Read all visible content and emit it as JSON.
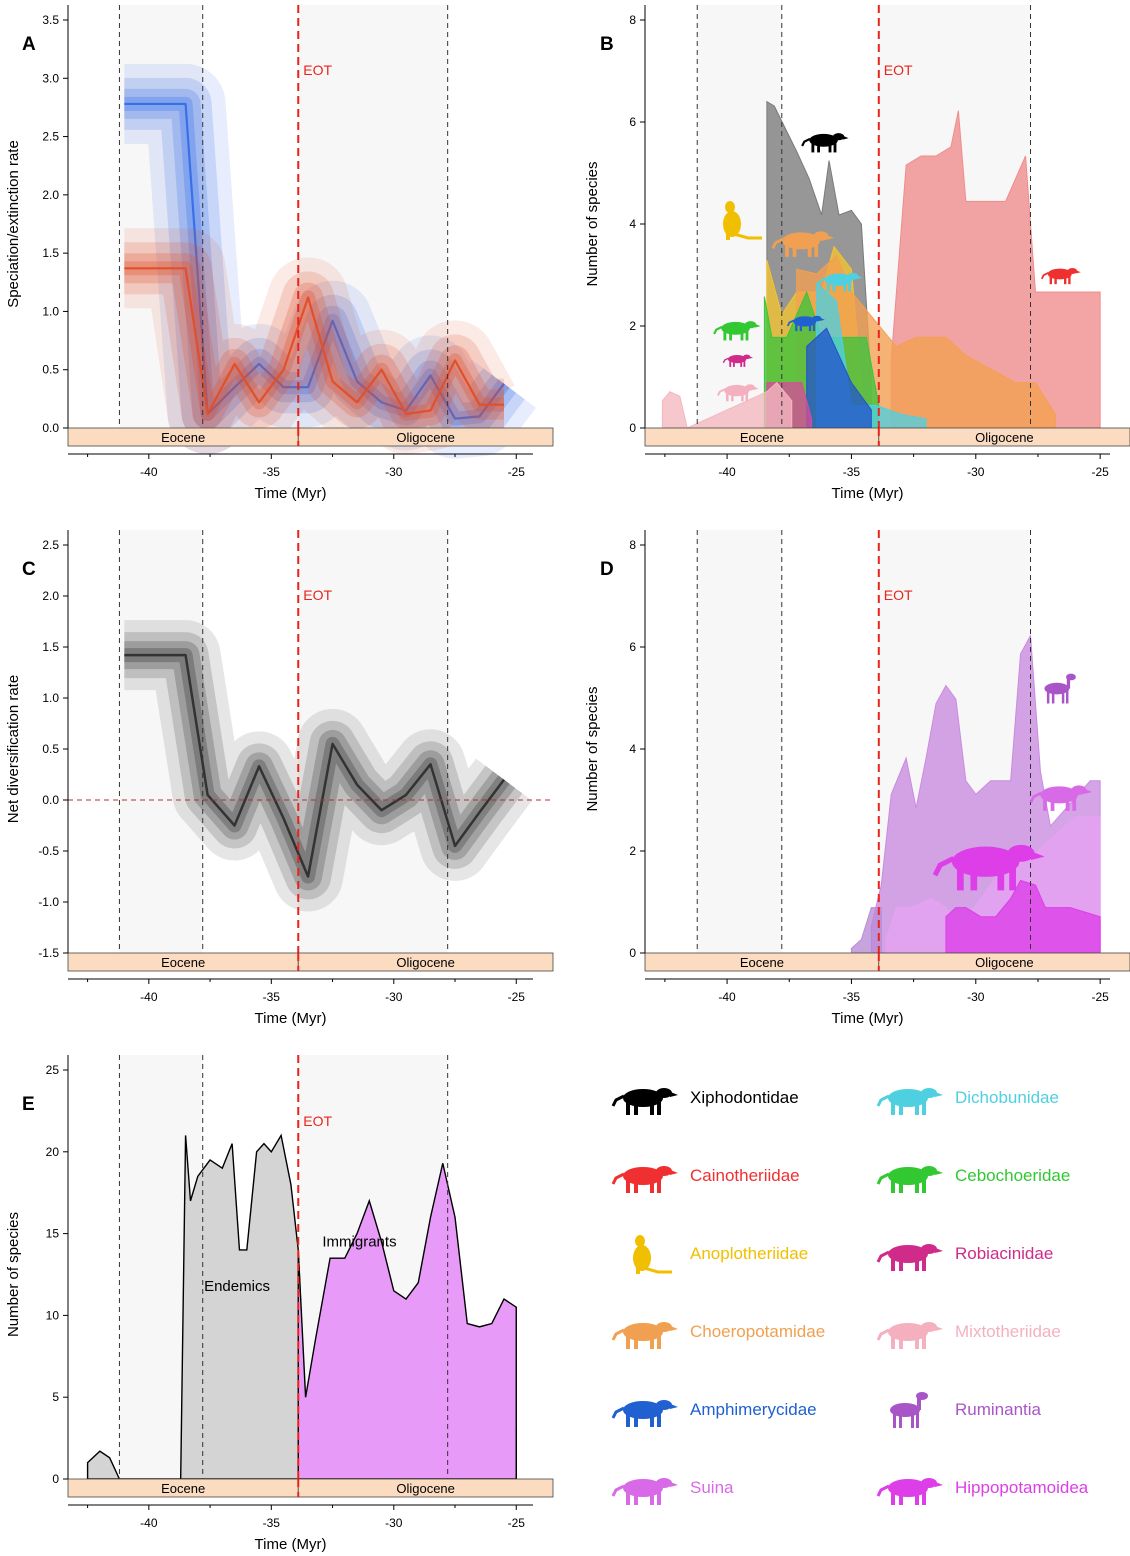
{
  "figure": {
    "eot_label": "EOT",
    "epochs": [
      {
        "name": "Eocene",
        "start": -43.3,
        "end": -33.9
      },
      {
        "name": "Oligocene",
        "start": -33.9,
        "end": -23.5
      }
    ],
    "eot_time": -33.9,
    "dashed_lines": [
      -41.2,
      -37.8,
      -27.8
    ],
    "shaded_intervals": [
      [
        -41.2,
        -37.8
      ],
      [
        -33.9,
        -27.8
      ]
    ],
    "colors": {
      "speciation": "#3a6fe8",
      "extinction": "#e0502a",
      "eot": "#e8241c",
      "epoch_band": "#fbdcc0",
      "shade": "#f7f7f7",
      "endemics": "#d4d4d4",
      "immigrants": "#e79af7"
    }
  },
  "chart_data": [
    {
      "panel": "A",
      "type": "line",
      "xlabel": "Time (Myr)",
      "ylabel": "Speciation/extinction rate",
      "xlim": [
        -43.3,
        -23.5
      ],
      "ylim": [
        0,
        3.5
      ],
      "xticks": [
        "-40",
        "-35",
        "-30",
        "-25"
      ],
      "yticks": [
        "0.0",
        "0.5",
        "1.0",
        "1.5",
        "2.0",
        "2.5",
        "3.0",
        "3.5"
      ],
      "series": [
        {
          "color": "#3a6fe8",
          "x": [
            -41,
            -38.5,
            -37.6,
            -36.5,
            -35.5,
            -34.5,
            -33.5,
            -32.5,
            -31.5,
            -30.5,
            -29.5,
            -28.5,
            -27.5,
            -26.5,
            -25.5
          ],
          "y": [
            2.78,
            2.78,
            0.12,
            0.35,
            0.55,
            0.35,
            0.35,
            0.92,
            0.4,
            0.22,
            0.15,
            0.45,
            0.08,
            0.1,
            0.38
          ]
        },
        {
          "color": "#e0502a",
          "x": [
            -41,
            -38.5,
            -37.6,
            -36.5,
            -35.5,
            -34.5,
            -33.5,
            -32.5,
            -31.5,
            -30.5,
            -29.5,
            -28.5,
            -27.5,
            -26.5,
            -25.5
          ],
          "y": [
            1.37,
            1.37,
            0.12,
            0.55,
            0.22,
            0.5,
            1.12,
            0.4,
            0.22,
            0.5,
            0.12,
            0.15,
            0.58,
            0.2,
            0.2
          ]
        }
      ]
    },
    {
      "panel": "B",
      "type": "area",
      "xlabel": "Time (Myr)",
      "ylabel": "Number of species",
      "xlim": [
        -43.3,
        -23.8
      ],
      "ylim": [
        0,
        9
      ],
      "xticks": [
        "-40",
        "-35",
        "-30",
        "-25"
      ],
      "yticks": [
        "0",
        "2",
        "4",
        "6",
        "8"
      ],
      "series": [
        {
          "color": "#f08c8c",
          "x": [
            -33.4,
            -32.8,
            -32.2,
            -31.6,
            -31.0,
            -30.7,
            -30.4,
            -29.8,
            -28.8,
            -28.0,
            -27.6,
            -27.0,
            -25.0
          ],
          "y": [
            1.5,
            5.8,
            6.0,
            6.0,
            6.2,
            7.0,
            5.0,
            5.0,
            5.0,
            6.0,
            3.0,
            3.0,
            3.0
          ]
        },
        {
          "color": "#7a7a7a",
          "x": [
            -38.4,
            -38.1,
            -37.2,
            -36.7,
            -36.2,
            -35.9,
            -35.5,
            -35.0,
            -34.6,
            -34.2
          ],
          "y": [
            7.2,
            7.1,
            6.1,
            5.5,
            4.7,
            5.9,
            4.7,
            4.8,
            4.5,
            1.0
          ]
        },
        {
          "color": "#f4c430",
          "x": [
            -38.4,
            -37.8,
            -37.2,
            -36.2,
            -35.7,
            -35.0,
            -34.6
          ],
          "y": [
            3.7,
            2.5,
            3.0,
            3.0,
            4.0,
            3.5,
            1.0
          ]
        },
        {
          "color": "#f4a050",
          "x": [
            -37.2,
            -36.4,
            -35.6,
            -35.0,
            -33.2,
            -32.4,
            -31.2,
            -30.4,
            -28.4,
            -27.6,
            -26.8
          ],
          "y": [
            3.5,
            3.4,
            3.8,
            3.0,
            1.8,
            2.0,
            2.0,
            1.6,
            1.0,
            1.0,
            0.3
          ]
        },
        {
          "color": "#3cc43c",
          "x": [
            -38.5,
            -38.2,
            -37.6,
            -36.8,
            -36.2,
            -35.2,
            -34.4,
            -33.9
          ],
          "y": [
            2.9,
            2.0,
            2.0,
            3.0,
            2.0,
            2.0,
            2.0,
            0.5
          ]
        },
        {
          "color": "#4fd0e0",
          "x": [
            -36.4,
            -35.6,
            -35.0,
            -34.0,
            -33.0,
            -32.0
          ],
          "y": [
            3.2,
            2.8,
            0.5,
            0.5,
            0.3,
            0.2
          ]
        },
        {
          "color": "#2255cc",
          "x": [
            -36.8,
            -36.0,
            -35.0,
            -34.2
          ],
          "y": [
            1.8,
            2.2,
            1.0,
            0.4
          ]
        },
        {
          "color": "#d64b9b",
          "x": [
            -38.4,
            -37.8,
            -37.0,
            -36.6
          ],
          "y": [
            1.0,
            1.0,
            1.0,
            0.2
          ]
        },
        {
          "color": "#f5b7c0",
          "x": [
            -42.6,
            -42.3,
            -41.9,
            -41.6,
            -38.4,
            -38.0,
            -37.4
          ],
          "y": [
            0.6,
            0.8,
            0.7,
            0.0,
            0.8,
            1.0,
            0.6
          ]
        }
      ]
    },
    {
      "panel": "C",
      "type": "line",
      "xlabel": "Time (Myr)",
      "ylabel": "Net diversification rate",
      "xlim": [
        -43.3,
        -23.5
      ],
      "ylim": [
        -1.5,
        2.5
      ],
      "xticks": [
        "-40",
        "-35",
        "-30",
        "-25"
      ],
      "yticks": [
        "-1.5",
        "-1.0",
        "-0.5",
        "0.0",
        "0.5",
        "1.0",
        "1.5",
        "2.0",
        "2.5"
      ],
      "series": [
        {
          "color": "#333333",
          "x": [
            -41,
            -38.5,
            -37.6,
            -36.5,
            -35.5,
            -34.5,
            -33.5,
            -32.5,
            -31.5,
            -30.5,
            -29.5,
            -28.5,
            -27.5,
            -26.5,
            -25.5
          ],
          "y": [
            1.42,
            1.42,
            0.05,
            -0.25,
            0.33,
            -0.18,
            -0.75,
            0.55,
            0.15,
            -0.1,
            0.05,
            0.35,
            -0.45,
            -0.12,
            0.2
          ]
        }
      ]
    },
    {
      "panel": "D",
      "type": "area",
      "xlabel": "Time (Myr)",
      "ylabel": "Number of species",
      "xlim": [
        -43.3,
        -23.8
      ],
      "ylim": [
        0,
        9
      ],
      "xticks": [
        "-40",
        "-35",
        "-30",
        "-25"
      ],
      "yticks": [
        "0",
        "2",
        "4",
        "6",
        "8"
      ],
      "series": [
        {
          "color": "#c98be0",
          "x": [
            -34.2,
            -33.8,
            -33.4,
            -32.8,
            -32.4,
            -32.0,
            -31.6,
            -31.2,
            -30.8,
            -30.4,
            -30.0,
            -29.4,
            -28.6,
            -28.2,
            -27.8,
            -27.4,
            -27.0,
            -26.2,
            -25.4,
            -25.0
          ],
          "y": [
            0.6,
            1.5,
            3.5,
            4.3,
            3.2,
            4.3,
            5.5,
            5.9,
            5.6,
            3.8,
            3.5,
            3.8,
            3.8,
            6.6,
            7.0,
            4.0,
            2.8,
            3.3,
            3.8,
            3.8
          ]
        },
        {
          "color": "#e5a2f2",
          "x": [
            -33.6,
            -33.2,
            -32.6,
            -31.8,
            -31.2,
            -30.6,
            -29.8,
            -29.0,
            -28.4,
            -27.6,
            -26.8,
            -26.0,
            -25.0
          ],
          "y": [
            0.3,
            1.0,
            1.0,
            1.2,
            1.0,
            0.6,
            1.2,
            1.8,
            2.0,
            2.2,
            2.6,
            3.0,
            3.0
          ]
        },
        {
          "color": "#dd3ee8",
          "x": [
            -31.2,
            -30.8,
            -30.4,
            -29.8,
            -29.2,
            -28.6,
            -28.2,
            -27.6,
            -27.2,
            -26.2,
            -25.0
          ],
          "y": [
            0.8,
            1.0,
            1.0,
            0.8,
            0.8,
            1.2,
            1.6,
            1.5,
            1.0,
            1.0,
            0.8
          ]
        },
        {
          "color": "#b98bd6",
          "x": [
            -35.0,
            -34.6,
            -34.2,
            -33.8
          ],
          "y": [
            0.1,
            0.3,
            1.0,
            1.0
          ]
        }
      ]
    },
    {
      "panel": "E",
      "type": "area",
      "xlabel": "Time (Myr)",
      "ylabel": "Number of species",
      "xlim": [
        -43.3,
        -23.5
      ],
      "ylim": [
        0,
        25
      ],
      "xticks": [
        "-40",
        "-35",
        "-30",
        "-25"
      ],
      "yticks": [
        "0",
        "5",
        "10",
        "15",
        "20",
        "25"
      ],
      "annotations": [
        "Endemics",
        "Immigrants"
      ],
      "series": [
        {
          "name": "Endemics",
          "color": "#d4d4d4",
          "x": [
            -42.5,
            -42.0,
            -41.6,
            -41.2,
            -38.7,
            -38.5,
            -38.3,
            -38.0,
            -37.5,
            -37.0,
            -36.6,
            -36.3,
            -36.0,
            -35.6,
            -35.3,
            -35.0,
            -34.6,
            -34.2,
            -33.9,
            -33.6,
            -33.2,
            -32.6,
            -32.0,
            -31.5,
            -31.0,
            -30.5,
            -30.0,
            -29.5,
            -29.0,
            -28.5,
            -28.0,
            -27.5,
            -27.0,
            -26.5,
            -25.0
          ],
          "y": [
            1.0,
            1.7,
            1.3,
            0.0,
            0.0,
            21.0,
            17.0,
            18.5,
            19.5,
            19.0,
            20.5,
            14.0,
            14.0,
            20.0,
            20.5,
            20.0,
            21.0,
            18.0,
            14.0,
            4.0,
            6.5,
            8.5,
            8.0,
            8.7,
            8.5,
            7.0,
            6.2,
            6.0,
            6.0,
            6.5,
            8.0,
            4.5,
            3.0,
            3.0,
            3.0
          ]
        },
        {
          "name": "Immigrants",
          "color": "#e79af7",
          "x": [
            -33.9,
            -33.6,
            -33.2,
            -32.6,
            -32.0,
            -31.5,
            -31.0,
            -30.5,
            -30.0,
            -29.5,
            -29.0,
            -28.5,
            -28.0,
            -27.5,
            -27.0,
            -26.5,
            -26.0,
            -25.5,
            -25.0
          ],
          "y": [
            14.0,
            5.0,
            8.5,
            13.5,
            13.5,
            15.0,
            17.0,
            14.5,
            11.5,
            11.0,
            12.0,
            16.0,
            19.3,
            16.0,
            9.5,
            9.3,
            9.5,
            11.0,
            10.5
          ]
        }
      ]
    }
  ],
  "legend": [
    {
      "icon": "xiphodont-silhouette-icon",
      "label": "Xiphodontidae",
      "color": "#000000"
    },
    {
      "icon": "dichobunid-silhouette-icon",
      "label": "Dichobunidae",
      "color": "#4fd0e0"
    },
    {
      "icon": "cainothere-silhouette-icon",
      "label": "Cainotheriidae",
      "color": "#f03030"
    },
    {
      "icon": "cebochoerid-silhouette-icon",
      "label": "Cebochoeridae",
      "color": "#32c832"
    },
    {
      "icon": "anoplothere-silhouette-icon",
      "label": "Anoplotheriidae",
      "color": "#f0c000"
    },
    {
      "icon": "robiacinid-silhouette-icon",
      "label": "Robiacinidae",
      "color": "#d02a8a"
    },
    {
      "icon": "choeropotamid-silhouette-icon",
      "label": "Choeropotamidae",
      "color": "#f0a050"
    },
    {
      "icon": "mixtotheriid-silhouette-icon",
      "label": "Mixtotheriidae",
      "color": "#f5b0c0"
    },
    {
      "icon": "amphimerycid-silhouette-icon",
      "label": "Amphimerycidae",
      "color": "#2060d0"
    },
    {
      "icon": "ruminant-silhouette-icon",
      "label": "Ruminantia",
      "color": "#a855c8"
    },
    {
      "icon": "suid-silhouette-icon",
      "label": "Suina",
      "color": "#d86ae8"
    },
    {
      "icon": "hippo-silhouette-icon",
      "label": "Hippopotamoidea",
      "color": "#dd3ee8"
    }
  ]
}
